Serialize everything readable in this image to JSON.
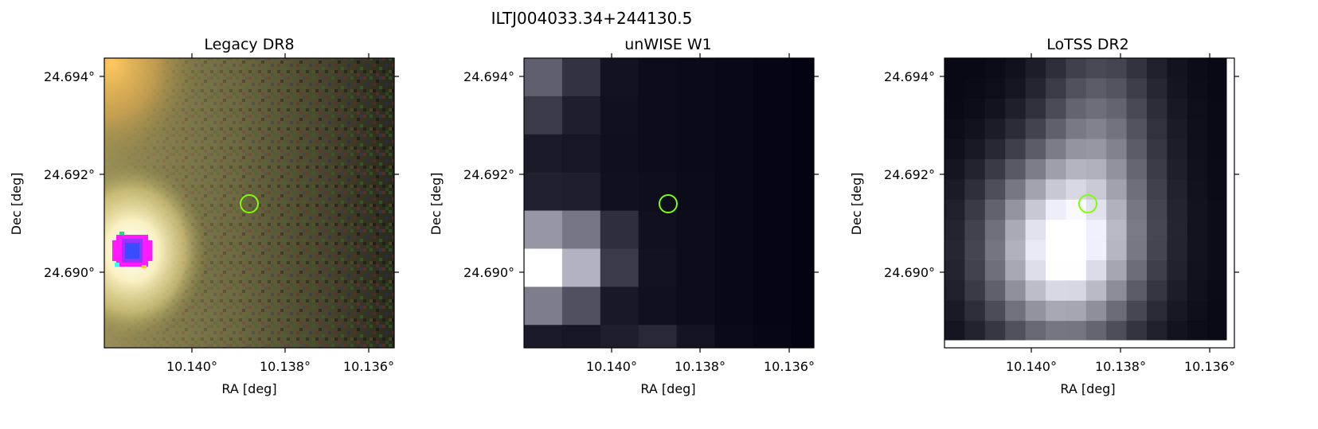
{
  "figure": {
    "title": "ILTJ004033.34+244130.5"
  },
  "panels": [
    {
      "title": "Legacy DR8",
      "xlabel": "RA [deg]",
      "ylabel": "Dec [deg]",
      "xticks": [
        "10.140°",
        "10.138°",
        "10.136°"
      ],
      "yticks": [
        "24.694°",
        "24.692°",
        "24.690°"
      ],
      "image": "optical color cutout",
      "marker": "circle",
      "marker_color": "#7fff00"
    },
    {
      "title": "unWISE W1",
      "xlabel": "RA [deg]",
      "ylabel": "Dec [deg]",
      "xticks": [
        "10.140°",
        "10.138°",
        "10.136°"
      ],
      "yticks": [
        "24.694°",
        "24.692°",
        "24.690°"
      ],
      "image": "infrared grayscale cutout",
      "marker": "circle",
      "marker_color": "#7fff00"
    },
    {
      "title": "LoTSS DR2",
      "xlabel": "RA [deg]",
      "ylabel": "Dec [deg]",
      "xticks": [
        "10.140°",
        "10.138°",
        "10.136°"
      ],
      "yticks": [
        "24.694°",
        "24.692°",
        "24.690°"
      ],
      "image": "radio grayscale cutout",
      "marker": "circle",
      "marker_color": "#7fff00"
    }
  ]
}
